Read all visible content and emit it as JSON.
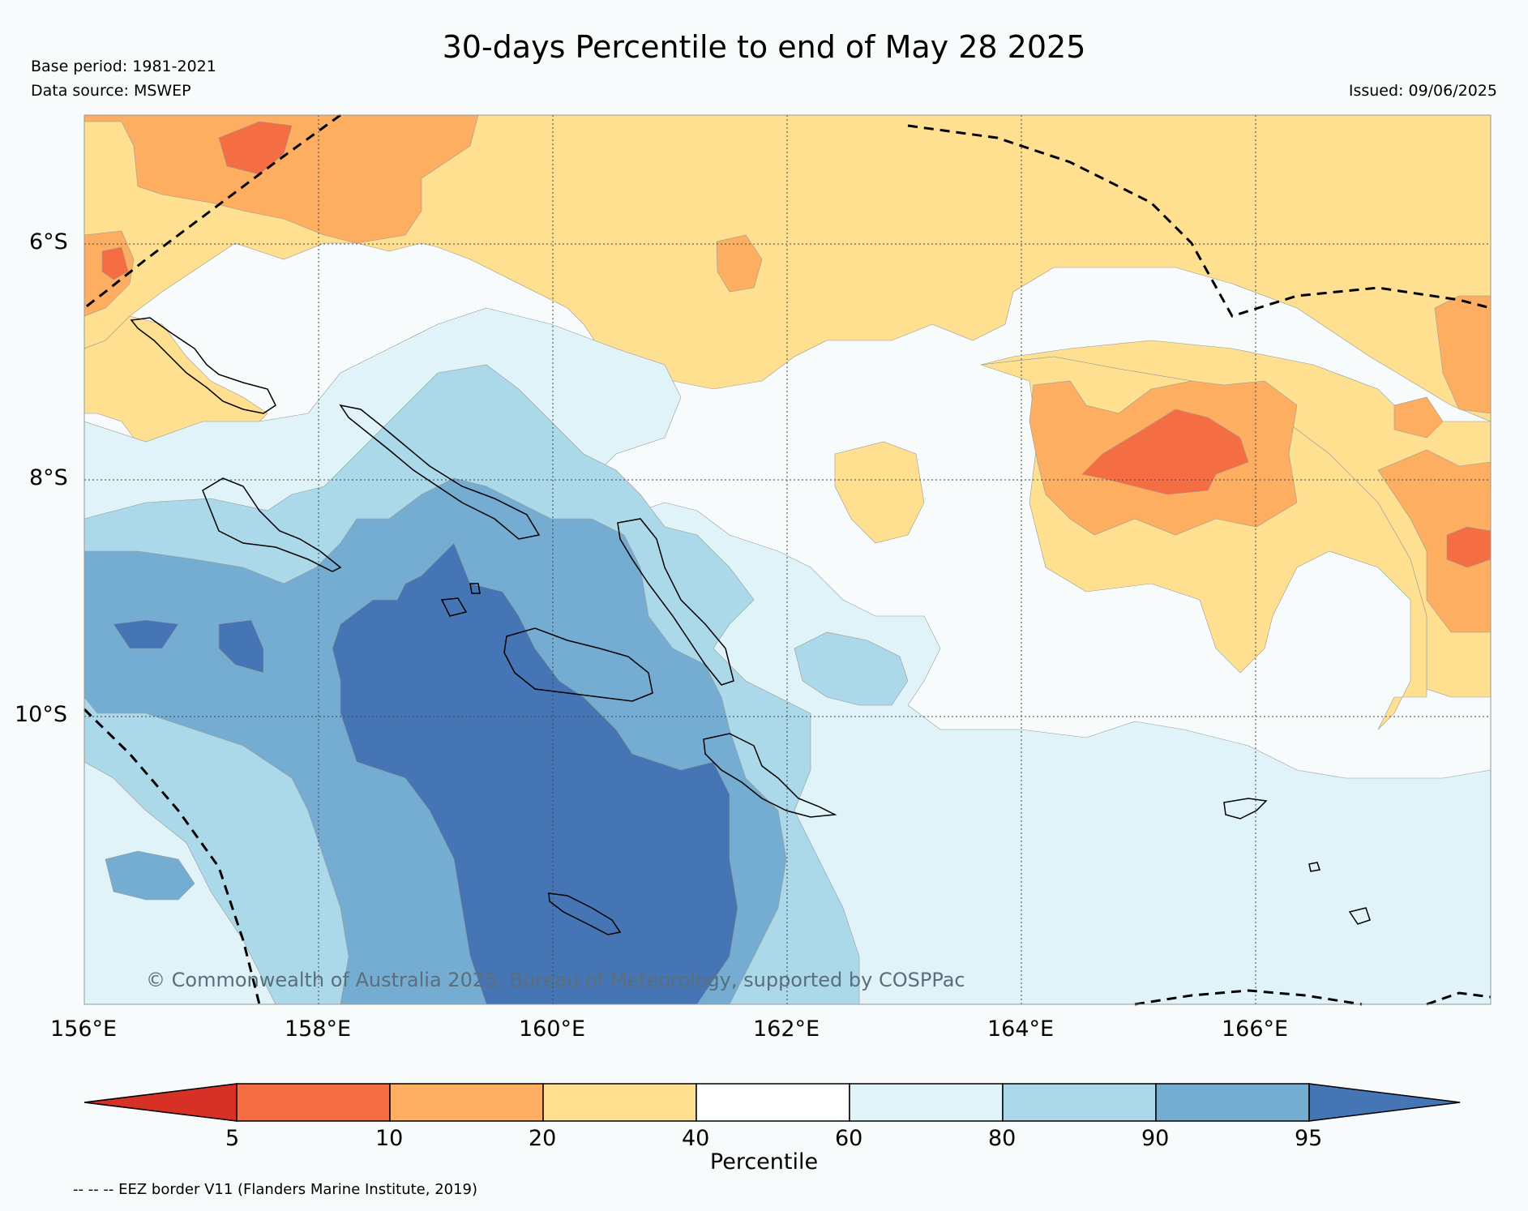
{
  "title": "30-days Percentile to end of May 28 2025",
  "base_period": "Base period: 1981-2021",
  "data_source": "Data source: MSWEP",
  "issued": "Issued: 09/06/2025",
  "copyright": "© Commonwealth of Australia 2025, Bureau of Meteorology, supported by COSPPac",
  "map": {
    "lon_labels": [
      "156°E",
      "158°E",
      "160°E",
      "162°E",
      "164°E",
      "166°E"
    ],
    "lat_labels": [
      "6°S",
      "8°S",
      "10°S"
    ],
    "lon_range": [
      156,
      168
    ],
    "lat_range": [
      -5,
      -12.6
    ]
  },
  "colorbar": {
    "title": "Percentile",
    "tick_labels": [
      "5",
      "10",
      "20",
      "40",
      "60",
      "80",
      "90",
      "95"
    ],
    "colors": [
      "#d73027",
      "#f46d43",
      "#fdae61",
      "#fee090",
      "#ffffff",
      "#e0f3f8",
      "#abd9e9",
      "#74add1",
      "#4575b4"
    ]
  },
  "legend_note": "-- -- -- EEZ border V11 (Flanders Marine Institute, 2019)"
}
